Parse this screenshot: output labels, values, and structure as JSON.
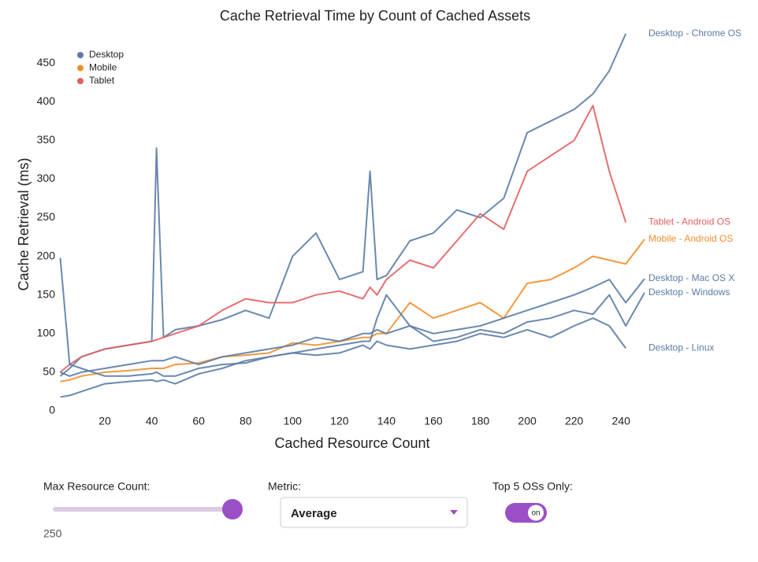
{
  "chart_data": {
    "type": "line",
    "title": "Cache Retrieval Time by Count of Cached Assets",
    "x_label": "Cached Resource Count",
    "y_label": "Cache Retrieval (ms)",
    "legend": [
      {
        "name": "Desktop",
        "color": "#5b7ba5"
      },
      {
        "name": "Mobile",
        "color": "#f28e2b"
      },
      {
        "name": "Tablet",
        "color": "#e05f62"
      }
    ],
    "legend_position": "top-left",
    "grid": false,
    "x": [
      1,
      5,
      10,
      20,
      30,
      40,
      42,
      45,
      50,
      60,
      70,
      80,
      90,
      100,
      110,
      120,
      130,
      133,
      136,
      140,
      150,
      160,
      170,
      180,
      190,
      200,
      210,
      220,
      228,
      235,
      242,
      250
    ],
    "series": [
      {
        "name": "Desktop - Chrome OS",
        "color": "#5b7ba5",
        "values": [
          45,
          55,
          70,
          80,
          85,
          90,
          340,
          95,
          105,
          110,
          118,
          130,
          120,
          200,
          230,
          170,
          180,
          310,
          170,
          175,
          220,
          230,
          260,
          250,
          275,
          360,
          375,
          390,
          410,
          440,
          488,
          null
        ]
      },
      {
        "name": "Tablet - Android OS",
        "color": "#e05f62",
        "values": [
          50,
          60,
          70,
          80,
          85,
          90,
          92,
          95,
          100,
          110,
          130,
          145,
          140,
          140,
          150,
          155,
          145,
          160,
          150,
          170,
          195,
          185,
          220,
          255,
          235,
          310,
          330,
          350,
          395,
          310,
          244,
          null
        ]
      },
      {
        "name": "Mobile - Android OS",
        "color": "#f28e2b",
        "values": [
          38,
          40,
          45,
          50,
          52,
          55,
          55,
          55,
          60,
          62,
          70,
          72,
          75,
          88,
          85,
          90,
          95,
          95,
          100,
          100,
          140,
          120,
          130,
          140,
          120,
          165,
          170,
          185,
          200,
          195,
          190,
          222
        ]
      },
      {
        "name": "Desktop - Mac OS X",
        "color": "#5b7ba5",
        "values": [
          50,
          45,
          50,
          55,
          60,
          65,
          65,
          65,
          70,
          60,
          70,
          75,
          80,
          85,
          95,
          90,
          100,
          100,
          105,
          100,
          110,
          100,
          105,
          110,
          120,
          130,
          140,
          150,
          160,
          170,
          140,
          171
        ]
      },
      {
        "name": "Desktop - Windows",
        "color": "#5b7ba5",
        "values": [
          198,
          60,
          55,
          45,
          45,
          48,
          50,
          45,
          45,
          55,
          60,
          62,
          70,
          75,
          80,
          85,
          90,
          90,
          120,
          150,
          110,
          90,
          95,
          105,
          100,
          115,
          120,
          130,
          125,
          150,
          110,
          153
        ]
      },
      {
        "name": "Desktop - Linux",
        "color": "#5b7ba5",
        "values": [
          18,
          20,
          25,
          35,
          38,
          40,
          38,
          40,
          35,
          48,
          55,
          65,
          70,
          75,
          72,
          75,
          85,
          80,
          90,
          85,
          80,
          85,
          90,
          100,
          95,
          105,
          95,
          110,
          120,
          110,
          81,
          null
        ]
      }
    ],
    "xlim": [
      0,
      250
    ],
    "xticks": [
      20,
      40,
      60,
      80,
      100,
      120,
      140,
      160,
      180,
      200,
      220,
      240
    ],
    "ylim": [
      0,
      500
    ],
    "yticks": [
      0,
      50,
      100,
      150,
      200,
      250,
      300,
      350,
      400,
      450
    ]
  },
  "controls": {
    "max_resource_count": {
      "label": "Max Resource Count:",
      "value": 250
    },
    "metric": {
      "label": "Metric:",
      "value": "Average"
    },
    "top_five": {
      "label": "Top 5 OSs Only:",
      "state": "on"
    }
  }
}
